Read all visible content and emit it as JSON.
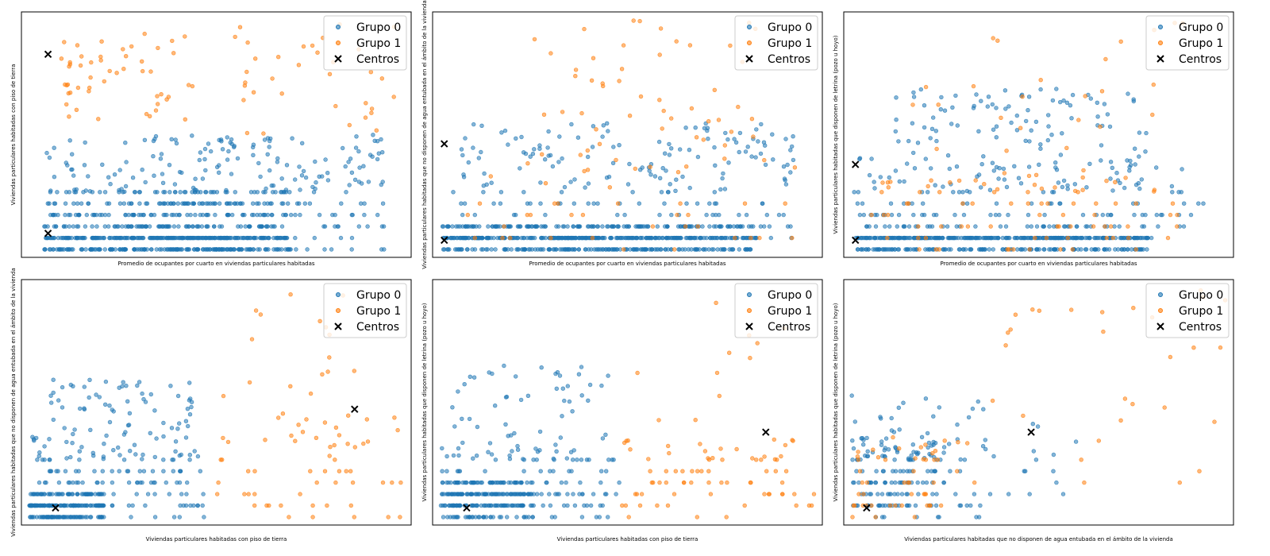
{
  "colors": {
    "group0": "#1f77b4",
    "group1": "#ff7f0e",
    "centers": "#000000"
  },
  "chart_data": [
    {
      "type": "scatter",
      "xlabel": "Promedio de ocupantes por cuarto en viviendas particulares habitadas",
      "ylabel": "Viviendas particulares habitadas con piso de tierra",
      "legend_position": "top-right",
      "grid": false,
      "series": [
        {
          "name": "Grupo 0",
          "seed": 11,
          "n": 900,
          "clusters": [
            {
              "x": [
                0.04,
                0.7
              ],
              "y": [
                0.0,
                0.05
              ],
              "w": 4
            },
            {
              "x": [
                0.04,
                0.7
              ],
              "y": [
                0.05,
                0.25
              ],
              "w": 3
            },
            {
              "x": [
                0.04,
                0.95
              ],
              "y": [
                0.0,
                0.5
              ],
              "w": 3
            }
          ]
        },
        {
          "name": "Grupo 1",
          "seed": 23,
          "n": 85,
          "clusters": [
            {
              "x": [
                0.08,
                0.45
              ],
              "y": [
                0.55,
                0.95
              ],
              "w": 3
            },
            {
              "x": [
                0.55,
                0.98
              ],
              "y": [
                0.5,
                1.0
              ],
              "w": 2
            }
          ]
        },
        {
          "name": "Centros",
          "points": [
            [
              0.05,
              0.85
            ],
            [
              0.05,
              0.07
            ]
          ]
        }
      ]
    },
    {
      "type": "scatter",
      "xlabel": "Promedio de ocupantes por cuarto en viviendas particulares habitadas",
      "ylabel": "Viviendas particulares habitadas que no disponen de agua entubada en el ámbito de la vivienda",
      "legend_position": "top-right",
      "grid": false,
      "series": [
        {
          "name": "Grupo 0",
          "seed": 37,
          "n": 800,
          "clusters": [
            {
              "x": [
                0.0,
                0.85
              ],
              "y": [
                0.0,
                0.1
              ],
              "w": 5
            },
            {
              "x": [
                0.02,
                0.95
              ],
              "y": [
                0.05,
                0.55
              ],
              "w": 2
            }
          ]
        },
        {
          "name": "Grupo 1",
          "seed": 41,
          "n": 90,
          "clusters": [
            {
              "x": [
                0.05,
                0.95
              ],
              "y": [
                0.0,
                0.4
              ],
              "w": 2
            },
            {
              "x": [
                0.25,
                0.85
              ],
              "y": [
                0.4,
                1.0
              ],
              "w": 2
            }
          ]
        },
        {
          "name": "Centros",
          "points": [
            [
              0.01,
              0.46
            ],
            [
              0.01,
              0.04
            ]
          ]
        }
      ]
    },
    {
      "type": "scatter",
      "xlabel": "Promedio de ocupantes por cuarto en viviendas particulares habitadas",
      "ylabel": "Viviendas particulares habitadas que disponen de letrina (pozo u hoyo)",
      "legend_position": "top-right",
      "grid": false,
      "series": [
        {
          "name": "Grupo 0",
          "seed": 53,
          "n": 700,
          "clusters": [
            {
              "x": [
                0.0,
                0.8
              ],
              "y": [
                0.0,
                0.08
              ],
              "w": 5
            },
            {
              "x": [
                0.0,
                0.95
              ],
              "y": [
                0.05,
                0.4
              ],
              "w": 2
            },
            {
              "x": [
                0.1,
                0.8
              ],
              "y": [
                0.4,
                0.7
              ],
              "w": 1
            }
          ]
        },
        {
          "name": "Grupo 1",
          "seed": 59,
          "n": 110,
          "clusters": [
            {
              "x": [
                0.05,
                0.9
              ],
              "y": [
                0.0,
                0.35
              ],
              "w": 3
            },
            {
              "x": [
                0.15,
                0.9
              ],
              "y": [
                0.35,
                1.0
              ],
              "w": 1
            }
          ]
        },
        {
          "name": "Centros",
          "points": [
            [
              0.01,
              0.37
            ],
            [
              0.01,
              0.04
            ]
          ]
        }
      ]
    },
    {
      "type": "scatter",
      "xlabel": "Viviendas particulares habitadas con piso de tierra",
      "ylabel": "Viviendas particulares habitadas que no disponen de agua entubada en el ámbito de la vivienda",
      "legend_position": "top-right",
      "grid": false,
      "series": [
        {
          "name": "Grupo 0",
          "seed": 67,
          "n": 420,
          "clusters": [
            {
              "x": [
                0.0,
                0.2
              ],
              "y": [
                0.0,
                0.1
              ],
              "w": 4
            },
            {
              "x": [
                0.0,
                0.48
              ],
              "y": [
                0.0,
                0.35
              ],
              "w": 3
            },
            {
              "x": [
                0.05,
                0.45
              ],
              "y": [
                0.35,
                0.6
              ],
              "w": 1
            }
          ]
        },
        {
          "name": "Grupo 1",
          "seed": 71,
          "n": 75,
          "clusters": [
            {
              "x": [
                0.5,
                1.0
              ],
              "y": [
                0.0,
                0.45
              ],
              "w": 3
            },
            {
              "x": [
                0.48,
                0.95
              ],
              "y": [
                0.45,
                1.0
              ],
              "w": 1
            }
          ]
        },
        {
          "name": "Centros",
          "points": [
            [
              0.07,
              0.04
            ],
            [
              0.87,
              0.47
            ]
          ]
        }
      ]
    },
    {
      "type": "scatter",
      "xlabel": "Viviendas particulares habitadas con piso de tierra",
      "ylabel": "Viviendas particulares habitadas que disponen de letrina (pozo u hoyo)",
      "legend_position": "top-right",
      "grid": false,
      "series": [
        {
          "name": "Grupo 0",
          "seed": 79,
          "n": 380,
          "clusters": [
            {
              "x": [
                0.0,
                0.25
              ],
              "y": [
                0.0,
                0.15
              ],
              "w": 4
            },
            {
              "x": [
                0.0,
                0.48
              ],
              "y": [
                0.0,
                0.3
              ],
              "w": 3
            },
            {
              "x": [
                0.02,
                0.45
              ],
              "y": [
                0.3,
                0.68
              ],
              "w": 1
            }
          ]
        },
        {
          "name": "Grupo 1",
          "seed": 83,
          "n": 85,
          "clusters": [
            {
              "x": [
                0.48,
                1.0
              ],
              "y": [
                0.0,
                0.35
              ],
              "w": 3
            },
            {
              "x": [
                0.48,
                0.95
              ],
              "y": [
                0.35,
                1.0
              ],
              "w": 1
            }
          ]
        },
        {
          "name": "Centros",
          "points": [
            [
              0.07,
              0.04
            ],
            [
              0.87,
              0.37
            ]
          ]
        }
      ]
    },
    {
      "type": "scatter",
      "xlabel": "Viviendas particulares habitadas que no disponen de agua entubada en el ámbito de la vivienda",
      "ylabel": "Viviendas particulares habitadas que disponen de letrina (pozo u hoyo)",
      "legend_position": "top-right",
      "grid": false,
      "series": [
        {
          "name": "Grupo 0",
          "seed": 89,
          "n": 200,
          "clusters": [
            {
              "x": [
                0.0,
                0.25
              ],
              "y": [
                0.0,
                0.35
              ],
              "w": 4
            },
            {
              "x": [
                0.0,
                0.6
              ],
              "y": [
                0.0,
                0.55
              ],
              "w": 2
            }
          ]
        },
        {
          "name": "Grupo 1",
          "seed": 97,
          "n": 80,
          "clusters": [
            {
              "x": [
                0.0,
                0.25
              ],
              "y": [
                0.0,
                0.35
              ],
              "w": 3
            },
            {
              "x": [
                0.25,
                1.0
              ],
              "y": [
                0.1,
                1.0
              ],
              "w": 2
            }
          ]
        },
        {
          "name": "Centros",
          "points": [
            [
              0.04,
              0.04
            ],
            [
              0.48,
              0.37
            ]
          ]
        }
      ]
    }
  ]
}
